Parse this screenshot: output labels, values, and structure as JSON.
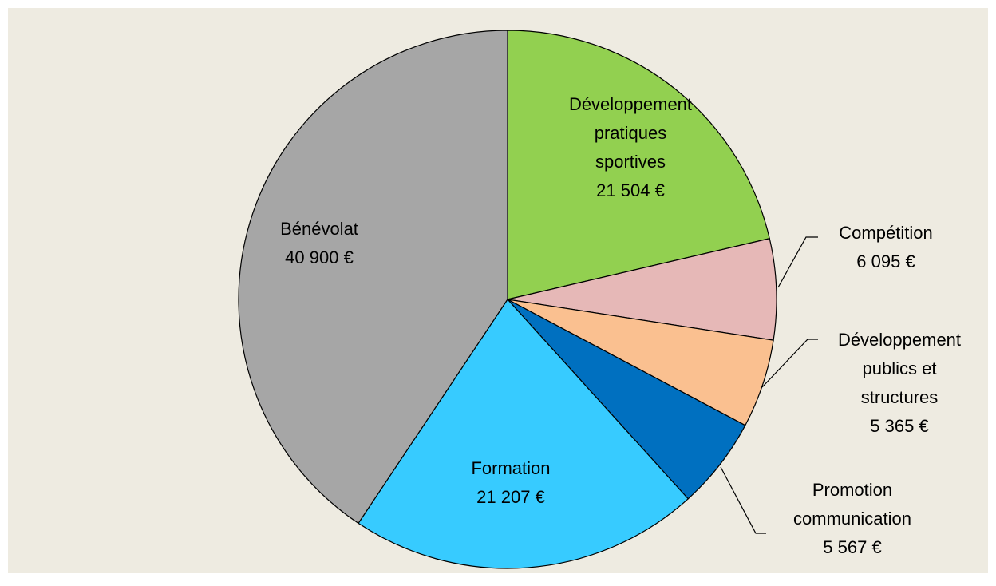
{
  "chart_data": {
    "type": "pie",
    "categories": [
      "Développement pratiques sportives",
      "Compétition",
      "Développement publics et structures",
      "Promotion communication",
      "Formation",
      "Bénévolat"
    ],
    "values": [
      21504,
      6095,
      5365,
      5567,
      21207,
      40900
    ],
    "value_labels": [
      "21 504 €",
      "6 095 €",
      "5 365 €",
      "5 567 €",
      "21 207 €",
      "40 900 €"
    ],
    "colors": [
      "#92d050",
      "#e6b8b7",
      "#fac090",
      "#0070c0",
      "#37cbff",
      "#a6a6a6"
    ]
  }
}
